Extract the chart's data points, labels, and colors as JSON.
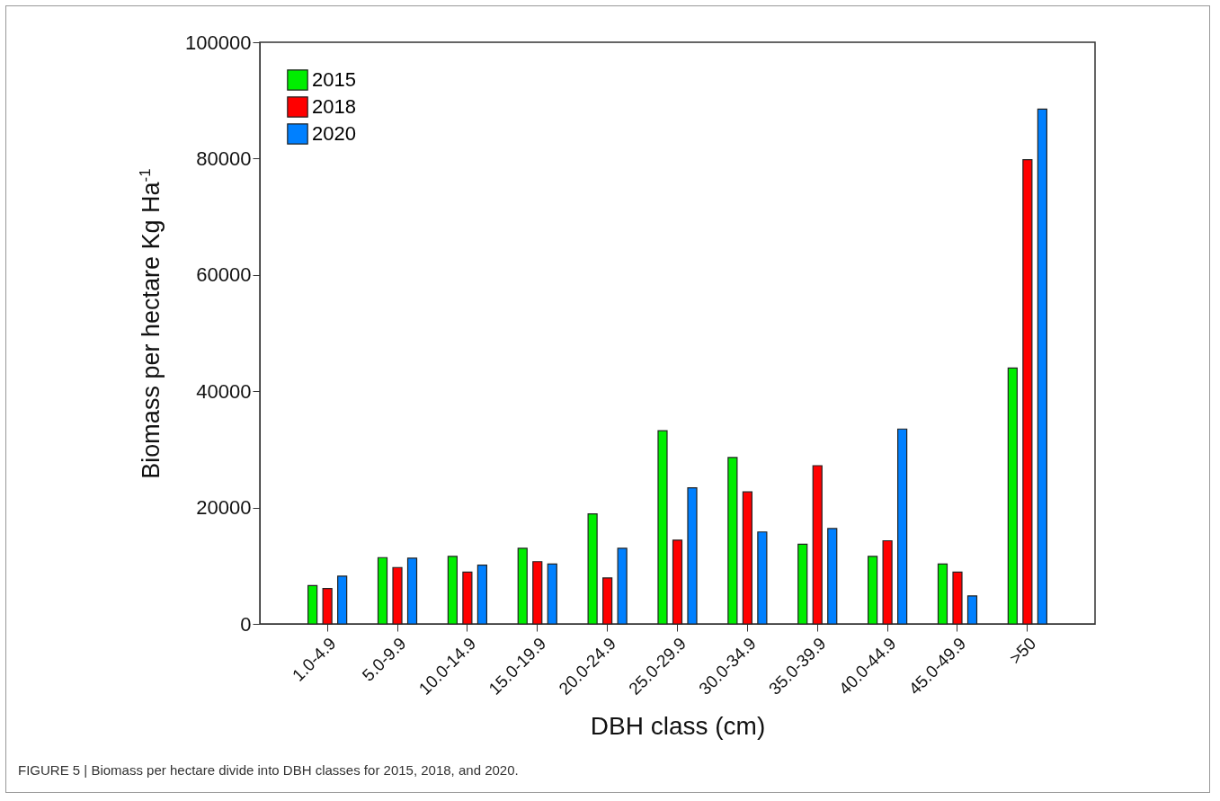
{
  "chart_data": {
    "type": "bar",
    "categories": [
      "1.0-4.9",
      "5.0-9.9",
      "10.0-14.9",
      "15.0-19.9",
      "20.0-24.9",
      "25.0-29.9",
      "30.0-34.9",
      "35.0-39.9",
      "40.0-44.9",
      "45.0-49.9",
      ">50"
    ],
    "series": [
      {
        "name": "2015",
        "color": "#00ee00",
        "values": [
          6600,
          11400,
          11600,
          13000,
          18900,
          33200,
          28600,
          13700,
          11600,
          10300,
          44000
        ]
      },
      {
        "name": "2018",
        "color": "#ff0000",
        "values": [
          6100,
          9700,
          8900,
          10700,
          7900,
          14400,
          22700,
          27200,
          14300,
          8900,
          79800
        ]
      },
      {
        "name": "2020",
        "color": "#0080ff",
        "values": [
          8200,
          11300,
          10100,
          10300,
          13000,
          23400,
          15800,
          16400,
          33500,
          4800,
          88500
        ]
      }
    ],
    "xlabel": "DBH class (cm)",
    "ylabel": "Biomass per hectare Kg Ha$^{-1}$",
    "ylim": [
      0,
      100000
    ],
    "yticks": [
      0,
      20000,
      40000,
      60000,
      80000,
      100000
    ],
    "grid": false,
    "legend": "top left",
    "annotations": [
      "FIGURE 5 | Biomass per hectare divide into DBH classes for 2015, 2018, and 2020."
    ]
  }
}
